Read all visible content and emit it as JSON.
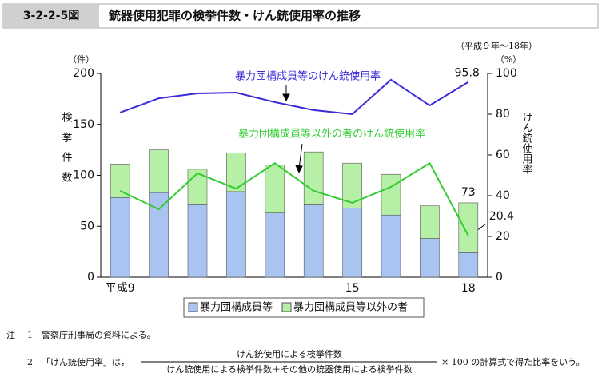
{
  "header": {
    "figure_id": "3-2-2-5図",
    "title": "銃器使用犯罪の検挙件数・けん銃使用率の推移"
  },
  "chart_data": {
    "type": "bar",
    "stacked": true,
    "period": "（平成９年～18年）",
    "categories": [
      "平成9",
      null,
      null,
      null,
      null,
      null,
      "15",
      null,
      null,
      "18"
    ],
    "y_unit": "（件）",
    "y_title": "検挙件数",
    "y2_unit": "（%）",
    "y2_title": "けん銃使用率",
    "ylim": [
      0,
      200
    ],
    "yticks": [
      0,
      50,
      100,
      150,
      200
    ],
    "y2lim": [
      0,
      100
    ],
    "y2ticks": [
      0,
      20,
      40,
      60,
      80,
      100
    ],
    "series": [
      {
        "name": "暴力団構成員等",
        "color": "#aac4f2",
        "values": [
          78,
          83,
          71,
          84,
          63,
          71,
          68,
          61,
          38,
          24
        ]
      },
      {
        "name": "暴力団構成員等以外の者",
        "color": "#b6f0a6",
        "values": [
          33,
          42,
          35,
          38,
          47,
          52,
          44,
          40,
          32,
          49
        ]
      },
      {
        "name": "暴力団構成員等のけん銃使用率",
        "type": "line",
        "axis": "y2",
        "color": "#3a2bd6",
        "values": [
          80.8,
          87.8,
          90.2,
          90.6,
          85.9,
          82,
          80,
          96.9,
          84.3,
          95.8
        ],
        "value_labels": [
          null,
          null,
          null,
          null,
          null,
          null,
          null,
          null,
          null,
          "95.8"
        ]
      },
      {
        "name": "暴力団構成員等以外の者のけん銃使用率",
        "type": "line",
        "axis": "y2",
        "color": "#33cc33",
        "values": [
          42.4,
          33.3,
          51,
          43.5,
          56,
          42.4,
          36.5,
          44.3,
          56,
          20.4
        ],
        "value_labels": [
          null,
          null,
          null,
          null,
          null,
          null,
          null,
          null,
          null,
          "20.4"
        ]
      }
    ],
    "total_labels": [
      null,
      null,
      null,
      null,
      null,
      null,
      null,
      null,
      null,
      "73"
    ]
  },
  "notes": {
    "label": "注",
    "items": [
      {
        "num": "1",
        "text": "警察庁刑事局の資料による。"
      },
      {
        "num": "2",
        "before": "「けん銃使用率」は，",
        "numerator": "けん銃使用による検挙件数",
        "denominator": "けん銃使用による検挙件数＋その他の銃器使用による検挙件数",
        "after": "× 100 の計算式で得た比率をいう。"
      }
    ]
  }
}
